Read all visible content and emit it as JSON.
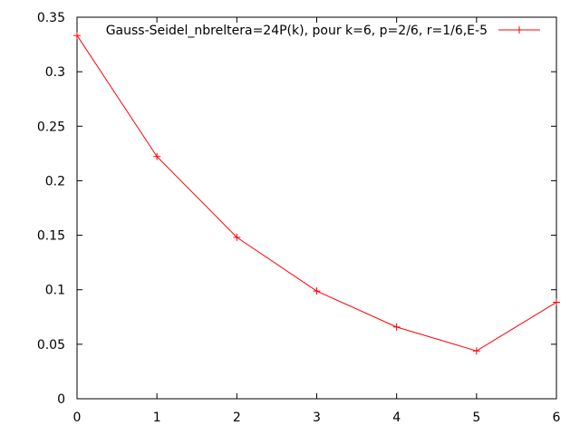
{
  "chart_data": {
    "type": "line",
    "title": "",
    "xlabel": "",
    "ylabel": "",
    "xlim": [
      0,
      6
    ],
    "ylim": [
      0,
      0.35
    ],
    "grid": false,
    "legend_position": "top-right",
    "x_ticks": [
      "0",
      "1",
      "2",
      "3",
      "4",
      "5",
      "6"
    ],
    "y_ticks": [
      "0",
      "0.05",
      "0.1",
      "0.15",
      "0.2",
      "0.25",
      "0.3",
      "0.35"
    ],
    "series": [
      {
        "name": "Gauss-Seidel_nbreltera=24P(k), pour k=6, p=2/6, r=1/6,E-5",
        "color": "#ff0000",
        "marker": "plus",
        "x": [
          0,
          1,
          2,
          3,
          4,
          5,
          6
        ],
        "y": [
          0.3333,
          0.2222,
          0.1481,
          0.0988,
          0.0658,
          0.0439,
          0.0885
        ]
      }
    ]
  }
}
